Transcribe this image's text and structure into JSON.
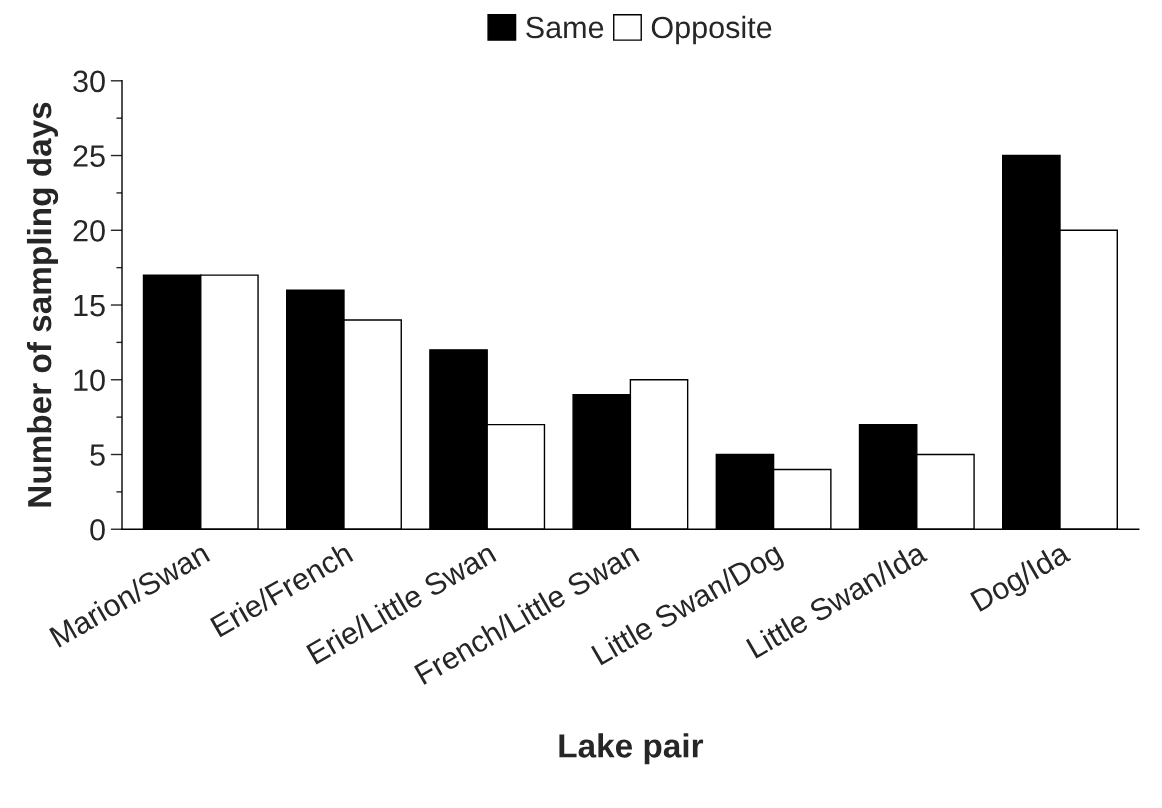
{
  "chart_data": {
    "type": "bar",
    "xlabel": "Lake pair",
    "ylabel": "Number of sampling days",
    "categories": [
      "Marion/Swan",
      "Erie/French",
      "Erie/Little Swan",
      "French/Little Swan",
      "Little Swan/Dog",
      "Little Swan/Ida",
      "Dog/Ida"
    ],
    "series": [
      {
        "name": "Same",
        "color": "#000000",
        "values": [
          17,
          16,
          12,
          9,
          5,
          7,
          25
        ]
      },
      {
        "name": "Opposite",
        "color": "#ffffff",
        "values": [
          17,
          14,
          7,
          10,
          4,
          5,
          20
        ]
      }
    ],
    "ylim": [
      0,
      30
    ],
    "yticks": [
      0,
      5,
      10,
      15,
      20,
      25,
      30
    ],
    "grid": false,
    "legend": "top"
  }
}
